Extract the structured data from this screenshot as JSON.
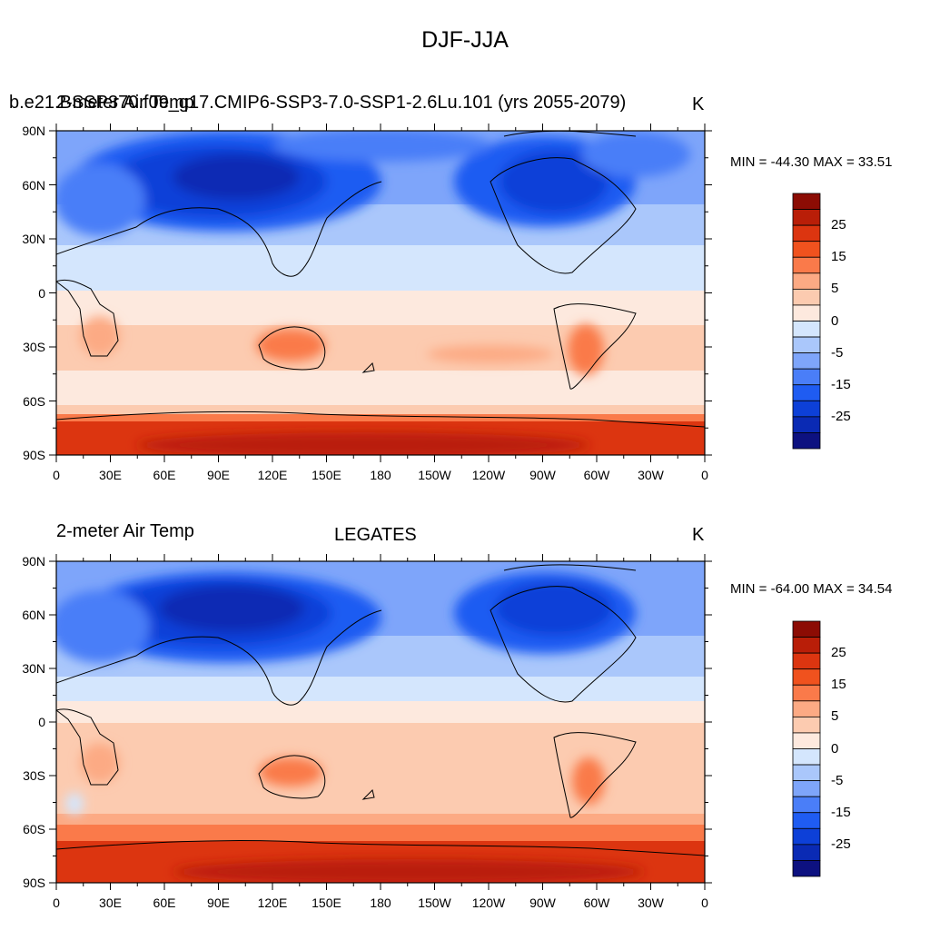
{
  "main_title": "DJF-JJA",
  "colors": {
    "levels": [
      "#0d1180",
      "#0a2ab4",
      "#0d40d8",
      "#1f5cf2",
      "#4a7ef8",
      "#7ea5fa",
      "#aac7fb",
      "#d4e6fd",
      "#fde9de",
      "#fccbb0",
      "#fcaa84",
      "#fa7a4a",
      "#f0521e",
      "#dc3510",
      "#b91e08",
      "#8c0c04"
    ]
  },
  "colorbar": {
    "labels": [
      "25",
      "15",
      "5",
      "0",
      "-5",
      "-15",
      "-25"
    ]
  },
  "panels": [
    {
      "left_title": "2-meter Air Temp",
      "case_name": "b.e21.BSSP370.f09_g17.CMIP6-SSP3-7.0-SSP1-2.6Lu.101 (yrs 2055-2079)",
      "center_title": "",
      "units": "K",
      "minmax": "MIN = -44.30 MAX =  33.51"
    },
    {
      "left_title": "2-meter Air Temp",
      "case_name": "",
      "center_title": "LEGATES",
      "units": "K",
      "minmax": "MIN = -64.00 MAX =  34.54"
    }
  ],
  "axes": {
    "lat_labels": [
      "90N",
      "60N",
      "30N",
      "0",
      "30S",
      "60S",
      "90S"
    ],
    "lon_labels": [
      "0",
      "30E",
      "60E",
      "90E",
      "120E",
      "150E",
      "180",
      "150W",
      "120W",
      "90W",
      "60W",
      "30W",
      "0"
    ]
  }
}
